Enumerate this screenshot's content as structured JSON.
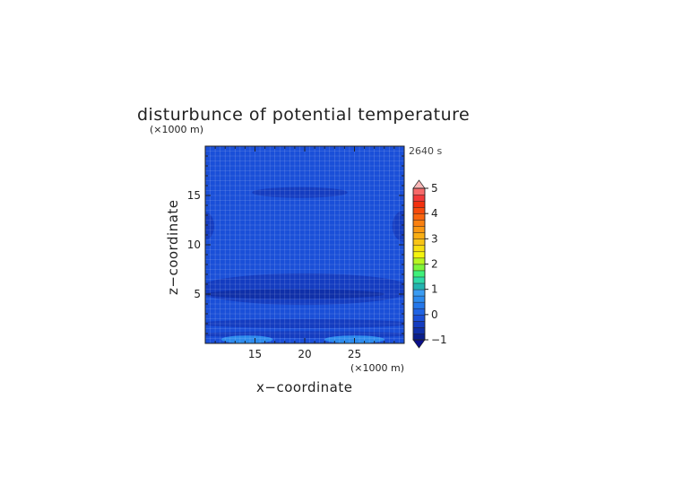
{
  "chart_data": {
    "type": "heatmap",
    "title": "disturbunce of potential temperature",
    "time_label": "2640 s",
    "xlabel": "x−coordinate",
    "ylabel": "z−coordinate",
    "x_unit": "(×1000 m)",
    "y_unit": "(×1000 m)",
    "xlim": [
      10,
      30
    ],
    "ylim": [
      0,
      20
    ],
    "x_ticks": [
      15,
      20,
      25
    ],
    "y_ticks": [
      5,
      10,
      15
    ],
    "colorbar": {
      "min": -1,
      "max": 5,
      "step": 0.25,
      "tick_labels": [
        "5",
        "4",
        "3",
        "2",
        "1",
        "0",
        "−1"
      ],
      "tick_values": [
        5,
        4,
        3,
        2,
        1,
        0,
        -1
      ],
      "extend": "both",
      "colors": [
        "#0a1e8c",
        "#0f2fa8",
        "#143cc0",
        "#1a4fd8",
        "#1f63e4",
        "#2477ea",
        "#2c8aee",
        "#3a9cf2",
        "#22b4b0",
        "#2ed9a8",
        "#3ff07a",
        "#7cf53a",
        "#b8f520",
        "#f4f40e",
        "#f7df12",
        "#f8c416",
        "#f9ae14",
        "#f99812",
        "#fa8010",
        "#f9650e",
        "#f64a0c",
        "#f2300e",
        "#f23a3a",
        "#f76a6a"
      ],
      "over_color": "#f9b7b7",
      "under_color": "#0a0f8a"
    },
    "background_value": -0.25,
    "features": [
      {
        "type": "patch",
        "value": -0.5,
        "center_x": 19.5,
        "center_z": 15.3,
        "half_width_x": 4.8,
        "half_height_z": 0.55
      },
      {
        "type": "patch",
        "value": -0.5,
        "center_x": 10.0,
        "center_z": 11.9,
        "half_width_x": 0.9,
        "half_height_z": 1.4
      },
      {
        "type": "patch",
        "value": -0.5,
        "center_x": 30.0,
        "center_z": 11.9,
        "half_width_x": 1.2,
        "half_height_z": 1.6
      },
      {
        "type": "patch",
        "value": -0.5,
        "center_x": 20.0,
        "center_z": 5.5,
        "half_width_x": 11.0,
        "half_height_z": 1.6
      },
      {
        "type": "patch",
        "value": -0.75,
        "center_x": 19.0,
        "center_z": 5.0,
        "half_width_x": 9.0,
        "half_height_z": 0.5
      },
      {
        "type": "patch",
        "value": -0.5,
        "center_x": 20.0,
        "center_z": 2.0,
        "half_width_x": 11.0,
        "half_height_z": 0.45
      },
      {
        "type": "patch",
        "value": -0.5,
        "center_x": 20.0,
        "center_z": 0.9,
        "half_width_x": 11.0,
        "half_height_z": 0.35
      },
      {
        "type": "patch",
        "value": 0.5,
        "center_x": 14.2,
        "center_z": 0.4,
        "half_width_x": 2.6,
        "half_height_z": 0.4
      },
      {
        "type": "patch",
        "value": 0.5,
        "center_x": 25.0,
        "center_z": 0.4,
        "half_width_x": 3.0,
        "half_height_z": 0.4
      }
    ]
  }
}
